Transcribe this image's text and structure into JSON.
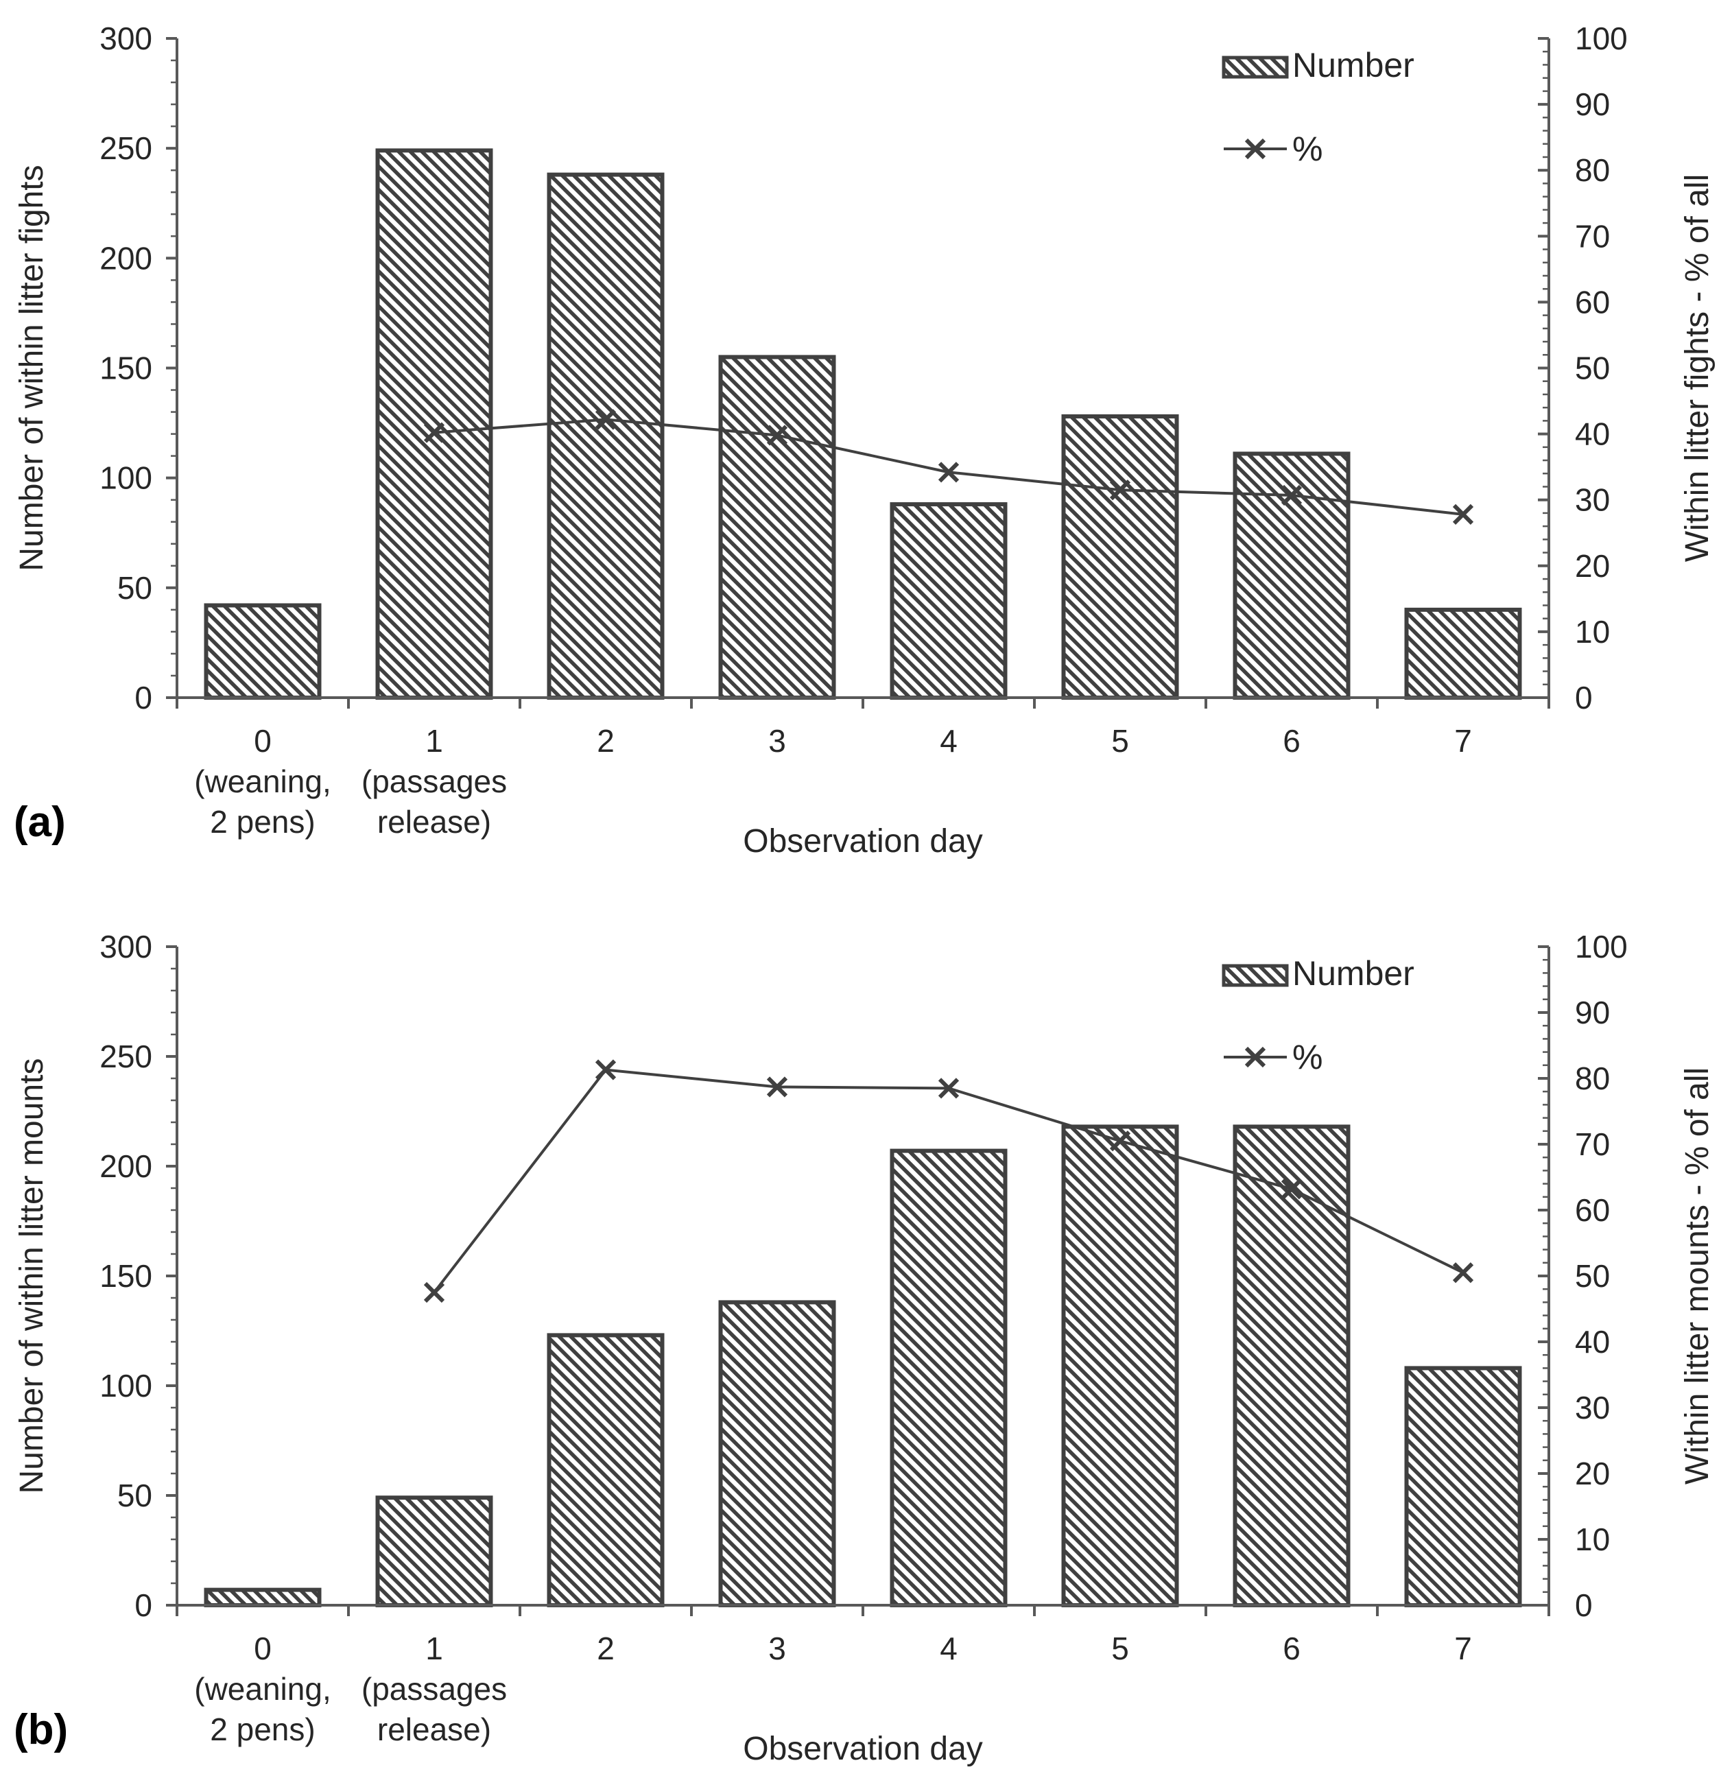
{
  "figure": {
    "colors": {
      "bar_stroke": "#404040",
      "hatch": "#404040",
      "line": "#404040",
      "axis": "#595959",
      "text": "#262626"
    }
  },
  "chart_data": [
    {
      "panel_label": "(a)",
      "type": "bar",
      "title": "",
      "categories": [
        "0",
        "1",
        "2",
        "3",
        "4",
        "5",
        "6",
        "7"
      ],
      "category_sublabels": [
        [
          "(weaning,",
          "2 pens)"
        ],
        [
          "(passages",
          "release)"
        ],
        [
          "",
          ""
        ],
        [
          "",
          ""
        ],
        [
          "",
          ""
        ],
        [
          "",
          ""
        ],
        [
          "",
          ""
        ],
        [
          "",
          ""
        ]
      ],
      "xlabel": "Observation day",
      "ylabel": "Number of within litter fights",
      "y2label": "Within litter fights - % of all",
      "ylim": [
        0,
        300
      ],
      "y2lim": [
        0,
        100
      ],
      "y_ticks": [
        0,
        50,
        100,
        150,
        200,
        250,
        300
      ],
      "y2_ticks": [
        0,
        10,
        20,
        30,
        40,
        50,
        60,
        70,
        80,
        90,
        100
      ],
      "legend": {
        "position": "top-right",
        "bar_label": "Number",
        "line_label": "%"
      },
      "series": [
        {
          "name": "Number",
          "type": "bar",
          "axis": "left",
          "values": [
            42,
            249,
            238,
            155,
            88,
            128,
            111,
            40
          ]
        },
        {
          "name": "%",
          "type": "line",
          "marker": "x",
          "axis": "right",
          "values": [
            null,
            40.2,
            42.2,
            39.8,
            34.2,
            31.5,
            30.7,
            27.8
          ]
        }
      ]
    },
    {
      "panel_label": "(b)",
      "type": "bar",
      "title": "",
      "categories": [
        "0",
        "1",
        "2",
        "3",
        "4",
        "5",
        "6",
        "7"
      ],
      "category_sublabels": [
        [
          "(weaning,",
          "2 pens)"
        ],
        [
          "(passages",
          "release)"
        ],
        [
          "",
          ""
        ],
        [
          "",
          ""
        ],
        [
          "",
          ""
        ],
        [
          "",
          ""
        ],
        [
          "",
          ""
        ],
        [
          "",
          ""
        ]
      ],
      "xlabel": "Observation day",
      "ylabel": "Number of within litter mounts",
      "y2label": "Within litter mounts - % of all",
      "ylim": [
        0,
        300
      ],
      "y2lim": [
        0,
        100
      ],
      "y_ticks": [
        0,
        50,
        100,
        150,
        200,
        250,
        300
      ],
      "y2_ticks": [
        0,
        10,
        20,
        30,
        40,
        50,
        60,
        70,
        80,
        90,
        100
      ],
      "legend": {
        "position": "top-right",
        "bar_label": "Number",
        "line_label": "%"
      },
      "series": [
        {
          "name": "Number",
          "type": "bar",
          "axis": "left",
          "values": [
            7,
            49,
            123,
            138,
            207,
            218,
            218,
            108
          ]
        },
        {
          "name": "%",
          "type": "line",
          "marker": "x",
          "axis": "right",
          "values": [
            null,
            47.5,
            81.3,
            78.7,
            78.5,
            70.5,
            63.2,
            50.5
          ]
        }
      ]
    }
  ]
}
